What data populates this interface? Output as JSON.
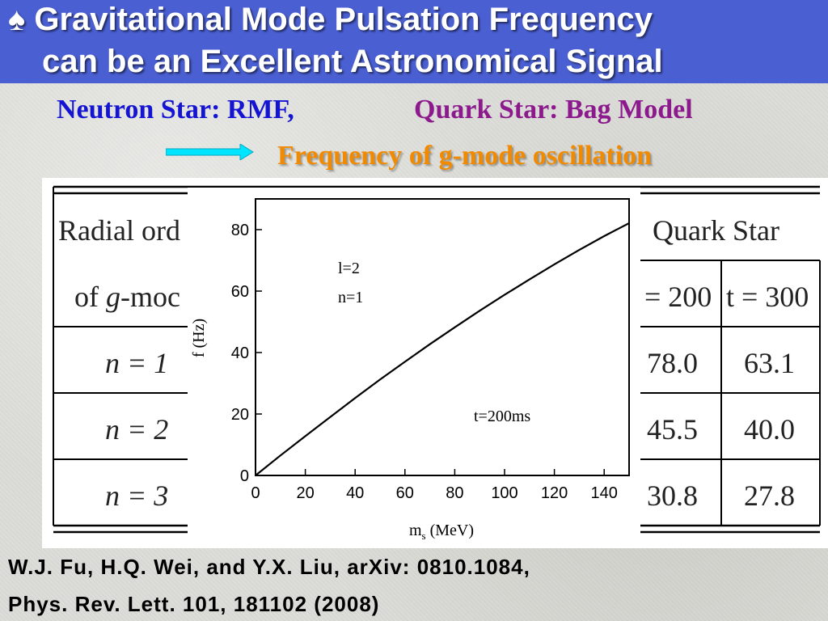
{
  "slide": {
    "title_line1": "♠ Gravitational Mode Pulsation Frequency",
    "title_line2": "can be an Excellent Astronomical Signal",
    "neutron_label": "Neutron Star:",
    "neutron_model": "RMF,",
    "quark_label": "Quark Star:",
    "quark_model": "Bag Model",
    "frequency_label": "Frequency of g-mode oscillation",
    "citation_line1": "W.J. Fu, H.Q. Wei, and Y.X. Liu, arXiv: 0810.1084,",
    "citation_line2": "Phys. Rev. Lett. 101,  181102  (2008)",
    "colors": {
      "title_bar": "#4a5fd2",
      "neutron": "#1414d2",
      "quark": "#8c1a8c",
      "frequency": "#f28a00",
      "arrow": "#00e5ff"
    }
  },
  "table": {
    "header_left_1": "Radial ord",
    "header_left_2_pre": "of ",
    "header_left_2_g": "g",
    "header_left_2_post": "-moc",
    "header_right": "Quark Star",
    "col_headers": [
      "= 200",
      "t = 300"
    ],
    "rows": [
      {
        "n": "n = 1",
        "values": [
          "78.0",
          "63.1"
        ]
      },
      {
        "n": "n = 2",
        "values": [
          "45.5",
          "40.0"
        ]
      },
      {
        "n": "n = 3",
        "values": [
          "30.8",
          "27.8"
        ]
      }
    ]
  },
  "chart_data": {
    "type": "line",
    "title": "",
    "xlabel": "m",
    "xlabel_sub": "s",
    "xlabel_unit": " (MeV)",
    "ylabel": "f (Hz)",
    "xlim": [
      0,
      150
    ],
    "ylim": [
      0,
      90
    ],
    "xticks": [
      "0",
      "20",
      "40",
      "60",
      "80",
      "100",
      "120",
      "140"
    ],
    "yticks": [
      "0",
      "20",
      "40",
      "60",
      "80"
    ],
    "annotations": [
      "l=2",
      "n=1",
      "t=200ms"
    ],
    "grid": false,
    "series": [
      {
        "x": [
          0,
          10,
          20,
          30,
          40,
          50,
          60,
          70,
          80,
          90,
          100,
          110,
          120,
          130,
          140,
          150
        ],
        "y": [
          0,
          6.5,
          12.8,
          19.0,
          25.2,
          31.2,
          37.0,
          42.7,
          48.2,
          53.6,
          58.8,
          63.8,
          68.7,
          73.4,
          77.9,
          82.1
        ]
      }
    ]
  }
}
